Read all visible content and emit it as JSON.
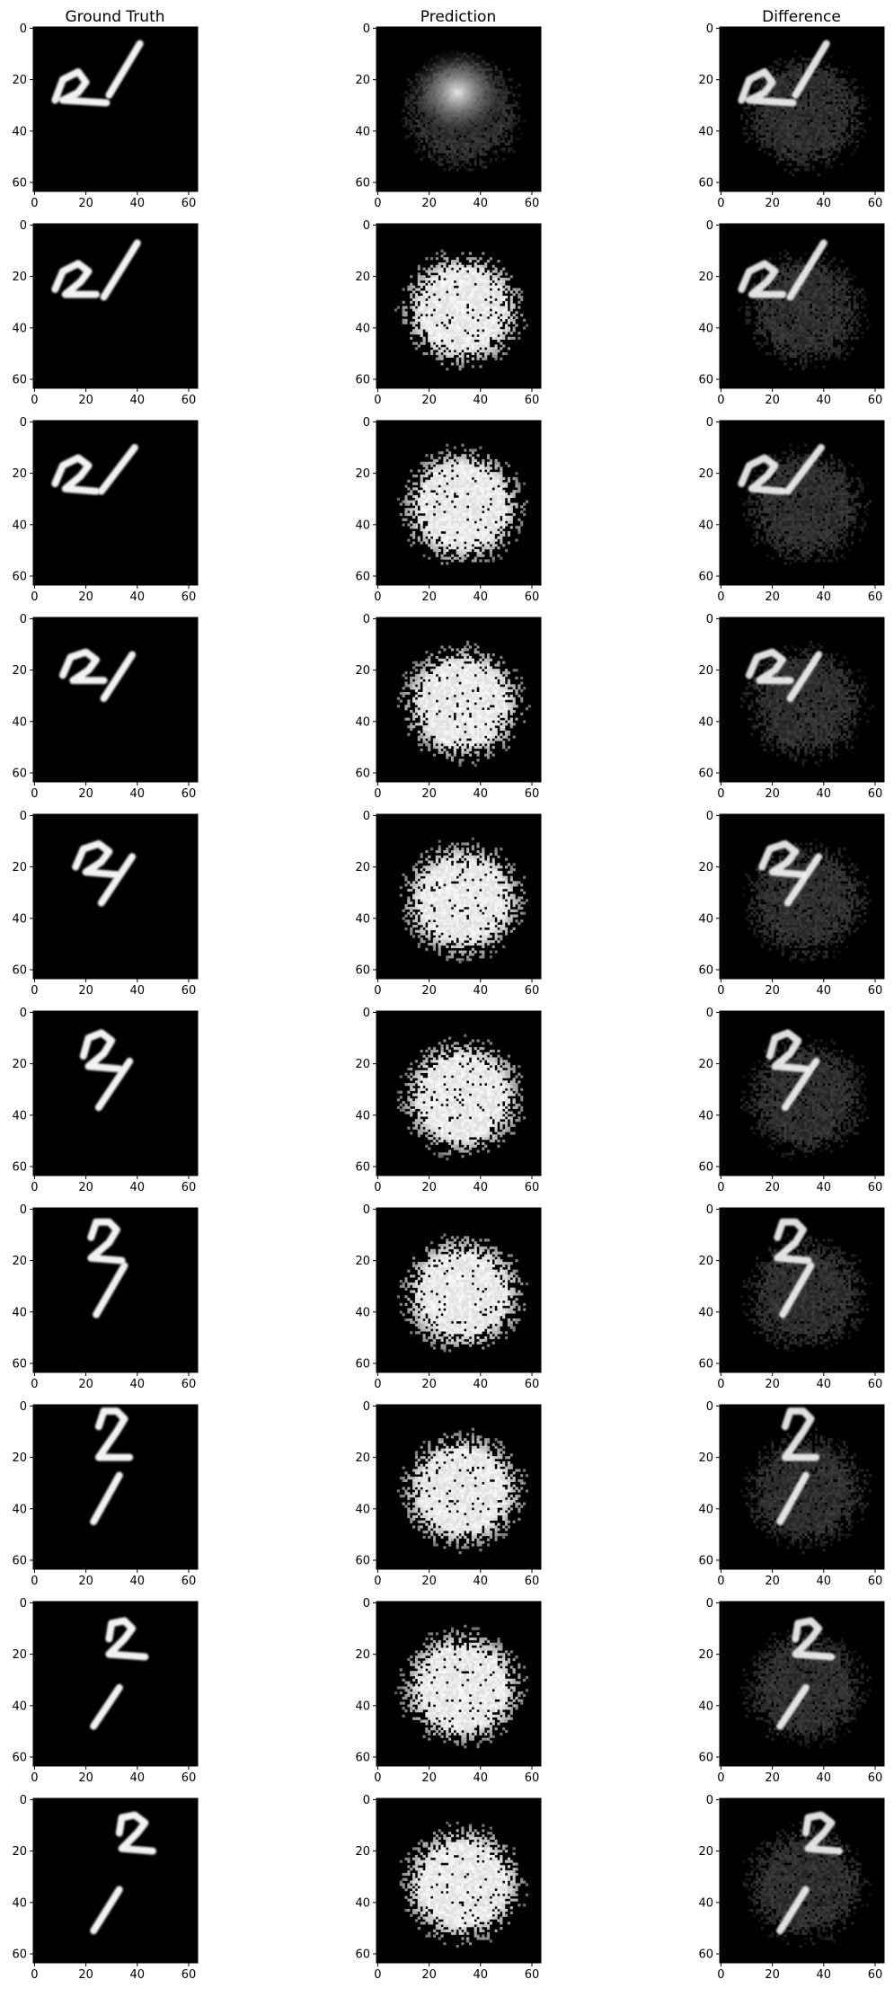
{
  "columns": [
    {
      "key": "gt",
      "title": "Ground Truth"
    },
    {
      "key": "pred",
      "title": "Prediction"
    },
    {
      "key": "diff",
      "title": "Difference"
    }
  ],
  "axes": {
    "xticks": [
      0,
      20,
      40,
      60
    ],
    "yticks": [
      0,
      20,
      40,
      60
    ],
    "xlim": [
      -0.5,
      63.5
    ],
    "ylim": [
      63.5,
      -0.5
    ]
  },
  "colormap": "gray",
  "frames": [
    {
      "row": 1,
      "digit2": [
        [
          8,
          28
        ],
        [
          11,
          20
        ],
        [
          17,
          17
        ],
        [
          20,
          21
        ],
        [
          17,
          25
        ],
        [
          11,
          28
        ],
        [
          28,
          29
        ]
      ],
      "digit1": [
        [
          29,
          26
        ],
        [
          41,
          6
        ]
      ],
      "pred_style": "blob"
    },
    {
      "row": 2,
      "digit2": [
        [
          8,
          25
        ],
        [
          11,
          18
        ],
        [
          17,
          15
        ],
        [
          21,
          18
        ],
        [
          18,
          22
        ],
        [
          12,
          27
        ],
        [
          24,
          27
        ]
      ],
      "digit1": [
        [
          27,
          28
        ],
        [
          40,
          7
        ]
      ],
      "pred_style": "noisy"
    },
    {
      "row": 3,
      "digit2": [
        [
          8,
          24
        ],
        [
          11,
          17
        ],
        [
          17,
          14
        ],
        [
          21,
          17
        ],
        [
          18,
          21
        ],
        [
          12,
          26
        ],
        [
          24,
          27
        ]
      ],
      "digit1": [
        [
          26,
          27
        ],
        [
          39,
          10
        ]
      ],
      "pred_style": "noisy"
    },
    {
      "row": 4,
      "digit2": [
        [
          11,
          22
        ],
        [
          14,
          15
        ],
        [
          20,
          13
        ],
        [
          24,
          16
        ],
        [
          21,
          20
        ],
        [
          15,
          24
        ],
        [
          27,
          24
        ]
      ],
      "digit1": [
        [
          27,
          31
        ],
        [
          38,
          14
        ]
      ],
      "pred_style": "noisy"
    },
    {
      "row": 5,
      "digit2": [
        [
          16,
          20
        ],
        [
          19,
          13
        ],
        [
          25,
          11
        ],
        [
          29,
          14
        ],
        [
          26,
          18
        ],
        [
          20,
          22
        ],
        [
          32,
          23
        ]
      ],
      "digit1": [
        [
          26,
          34
        ],
        [
          38,
          16
        ]
      ],
      "pred_style": "noisy"
    },
    {
      "row": 6,
      "digit2": [
        [
          19,
          17
        ],
        [
          21,
          10
        ],
        [
          26,
          8
        ],
        [
          30,
          11
        ],
        [
          27,
          16
        ],
        [
          21,
          21
        ],
        [
          33,
          22
        ]
      ],
      "digit1": [
        [
          25,
          37
        ],
        [
          37,
          19
        ]
      ],
      "pred_style": "noisy"
    },
    {
      "row": 7,
      "digit2": [
        [
          22,
          11
        ],
        [
          24,
          5
        ],
        [
          29,
          5
        ],
        [
          32,
          8
        ],
        [
          29,
          13
        ],
        [
          22,
          19
        ],
        [
          34,
          20
        ]
      ],
      "digit1": [
        [
          24,
          41
        ],
        [
          35,
          22
        ]
      ],
      "pred_style": "noisy"
    },
    {
      "row": 8,
      "digit2": [
        [
          25,
          8
        ],
        [
          27,
          2
        ],
        [
          32,
          2
        ],
        [
          35,
          5
        ],
        [
          32,
          10
        ],
        [
          25,
          20
        ],
        [
          37,
          20
        ]
      ],
      "digit1": [
        [
          23,
          45
        ],
        [
          33,
          27
        ]
      ],
      "pred_style": "noisy"
    },
    {
      "row": 9,
      "digit2": [
        [
          29,
          14
        ],
        [
          30,
          8
        ],
        [
          35,
          7
        ],
        [
          38,
          10
        ],
        [
          35,
          14
        ],
        [
          29,
          20
        ],
        [
          43,
          21
        ]
      ],
      "digit1": [
        [
          23,
          48
        ],
        [
          33,
          33
        ]
      ],
      "pred_style": "noisy"
    },
    {
      "row": 10,
      "digit2": [
        [
          33,
          13
        ],
        [
          34,
          7
        ],
        [
          39,
          6
        ],
        [
          43,
          9
        ],
        [
          40,
          13
        ],
        [
          34,
          19
        ],
        [
          46,
          20
        ]
      ],
      "digit1": [
        [
          23,
          51
        ],
        [
          33,
          35
        ]
      ],
      "pred_style": "noisy"
    }
  ]
}
